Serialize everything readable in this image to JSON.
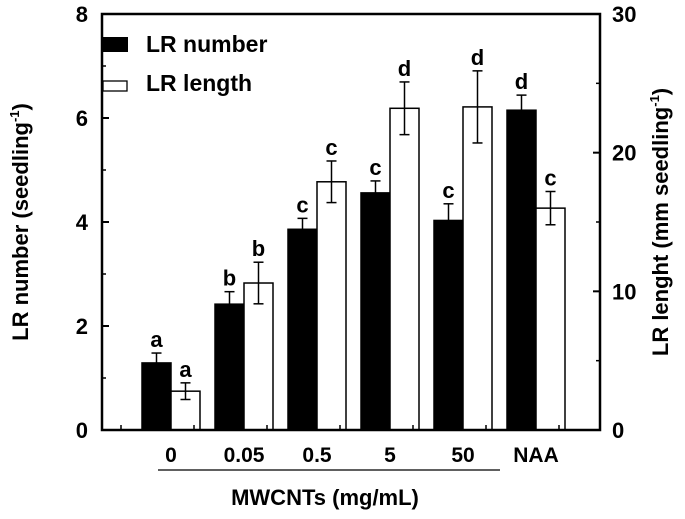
{
  "chart_data": {
    "type": "bar",
    "title": "",
    "xlabel": "MWCNTs (mg/mL)",
    "ylabel": "LR number (seedling",
    "ylabel_sup": "-1",
    "ylabel_end": ")",
    "y2label": "LR lenght (mm seedling",
    "y2label_sup": "-1",
    "y2label_end": ")",
    "categories": [
      "0",
      "0.05",
      "0.5",
      "5",
      "50",
      "NAA"
    ],
    "ylim": [
      0,
      8
    ],
    "yticks": [
      "0",
      "2",
      "4",
      "6",
      "8"
    ],
    "y2lim": [
      0,
      30
    ],
    "y2ticks": [
      "0",
      "10",
      "20",
      "30"
    ],
    "grid": false,
    "legend_position": "top-left",
    "series": [
      {
        "name": "LR number",
        "axis": "left",
        "color": "#000000",
        "values": [
          1.29,
          2.42,
          3.86,
          4.56,
          4.03,
          6.15
        ],
        "errors": [
          0.19,
          0.24,
          0.21,
          0.23,
          0.32,
          0.29
        ],
        "letters": [
          "a",
          "b",
          "c",
          "c",
          "c",
          "d"
        ]
      },
      {
        "name": "LR length",
        "axis": "right",
        "color": "#ffffff",
        "values": [
          2.8,
          10.6,
          17.9,
          23.2,
          23.3,
          16.0
        ],
        "errors": [
          0.6,
          1.5,
          1.5,
          1.9,
          2.6,
          1.2
        ],
        "letters": [
          "a",
          "b",
          "c",
          "d",
          "d",
          "c"
        ]
      }
    ]
  }
}
